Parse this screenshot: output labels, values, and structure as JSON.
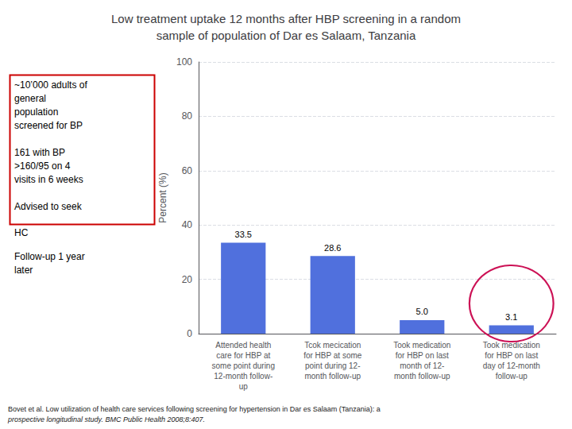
{
  "chart_data": {
    "type": "bar",
    "title": "Low treatment uptake 12 months after HBP screening in a random\nsample of population of Dar es Salaam, Tanzania",
    "categories": [
      "Attended health\ncare for HBP at\nsome point during\n12-month follow-\nup",
      "Tcok mecication\nfor HBP at some\npoint during 12-\nmonth follow-up",
      "Took medication\nfor HBP on last\nmonth of 12-\nmonth follow-up",
      "Took medication\nfor HBP on last\nday of 12-month\nfollow-up"
    ],
    "values": [
      33.5,
      28.6,
      5.0,
      3.1
    ],
    "value_labels": [
      "33.5",
      "28.6",
      "5.0",
      "3.1"
    ],
    "data_labels": true,
    "ylabel": "Percent (%)",
    "ylim": [
      0,
      100
    ],
    "yticks": [
      0,
      20,
      40,
      60,
      80,
      100
    ],
    "grid": true,
    "annotations": [
      "~10’000 adults of\ngeneral\npopulation\nscreened for BP\n\n161 with BP\n>160/95 on 4\nvisits in 6 weeks\n\nAdvised to seek",
      "HC",
      "Follow-up 1 year\nlater",
      "Bovet et al. Low utilization of health care services following screening for hypertension in Dar es Salaam (Tanzania): a",
      "prospective longitudinal study. BMC Public Health 2008;8:407."
    ]
  }
}
